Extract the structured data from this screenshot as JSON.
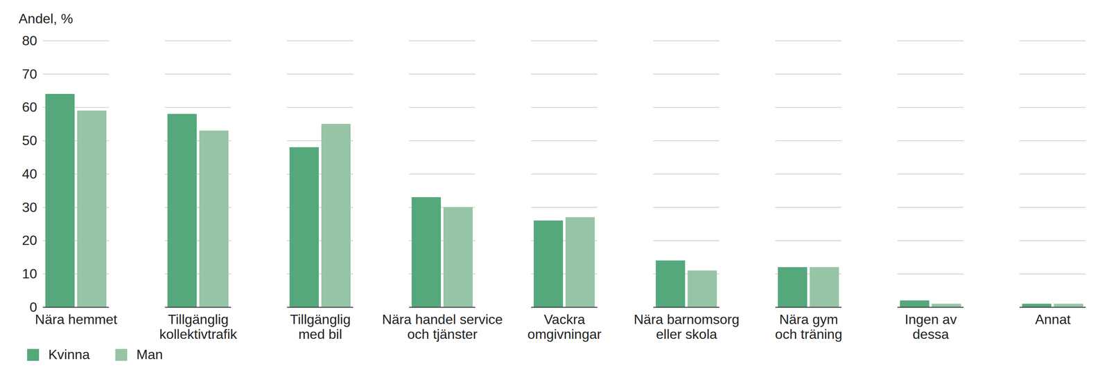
{
  "chart_data": {
    "type": "bar",
    "ylabel": "Andel, %",
    "categories": [
      "Nära hemmet",
      "Tillgänglig\nkollektivtrafik",
      "Tillgänglig\nmed bil",
      "Nära handel service\noch tjänster",
      "Vackra\nomgivningar",
      "Nära barnomsorg\neller skola",
      "Nära gym\noch träning",
      "Ingen av\ndessa",
      "Annat"
    ],
    "series": [
      {
        "name": "Kvinna",
        "color": "#55a87c",
        "values": [
          64,
          58,
          48,
          33,
          26,
          14,
          12,
          2,
          1
        ]
      },
      {
        "name": "Man",
        "color": "#97c4a6",
        "values": [
          59,
          53,
          55,
          30,
          27,
          11,
          12,
          1,
          1
        ]
      }
    ],
    "ylim": [
      0,
      80
    ],
    "yticks": [
      0,
      10,
      20,
      30,
      40,
      50,
      60,
      70,
      80
    ],
    "grid": true,
    "legend": "bottom-left"
  }
}
